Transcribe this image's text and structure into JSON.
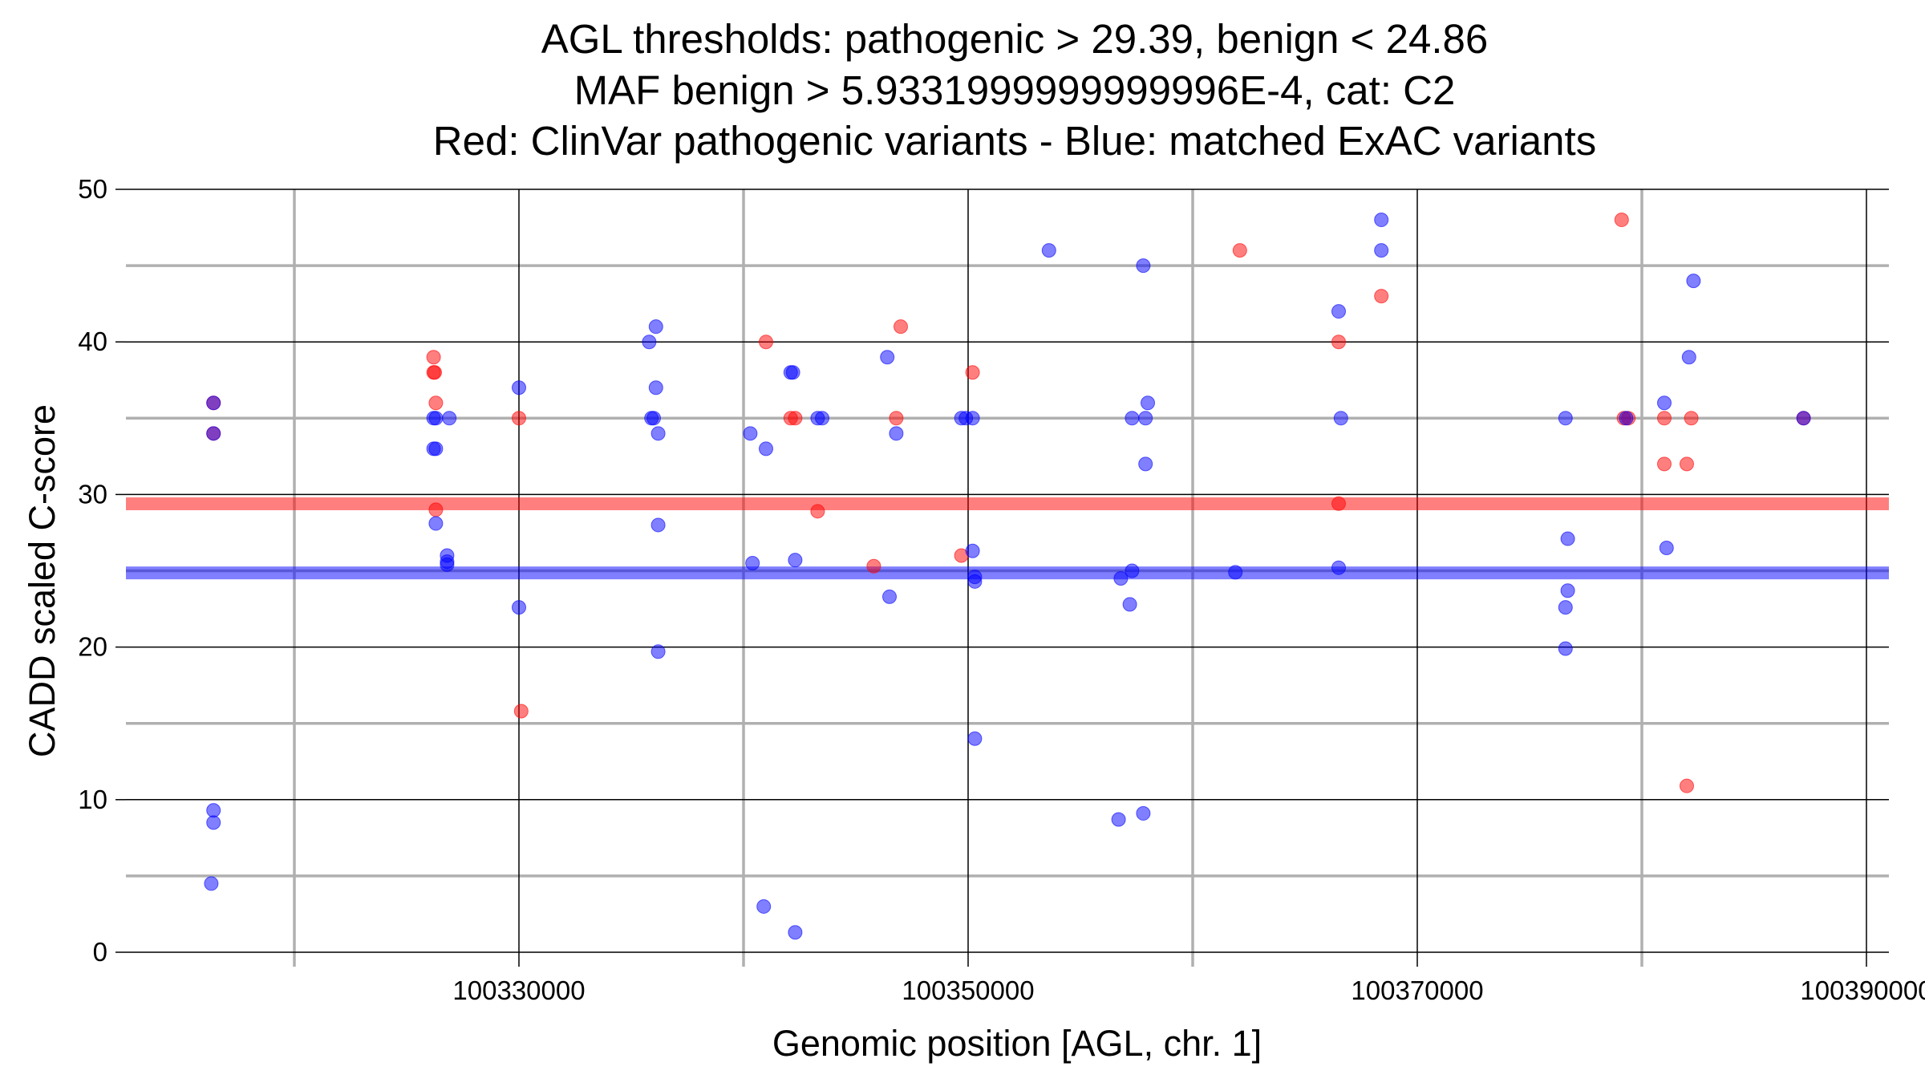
{
  "chart_data": {
    "type": "scatter",
    "title_lines": [
      "AGL thresholds: pathogenic > 29.39, benign < 24.86",
      "MAF benign > 5.9331999999999996E-4, cat: C2",
      "Red: ClinVar pathogenic variants - Blue: matched ExAC variants"
    ],
    "xlabel": "Genomic position [AGL, chr. 1]",
    "ylabel": "CADD scaled C-score",
    "xlim": [
      100312500,
      100391000
    ],
    "ylim": [
      0,
      50
    ],
    "x_ticks": [
      100330000,
      100350000,
      100370000,
      100390000
    ],
    "x_tick_labels": [
      "100330000",
      "100350000",
      "100370000",
      "100390000"
    ],
    "x_minor_grid": [
      100320000,
      100340000,
      100360000,
      100380000
    ],
    "y_ticks": [
      0,
      10,
      20,
      30,
      40,
      50
    ],
    "y_tick_labels": [
      "0",
      "10",
      "20",
      "30",
      "40",
      "50"
    ],
    "y_minor_grid": [
      5,
      15,
      25,
      35,
      45
    ],
    "grid": true,
    "colors": {
      "pathogenic": "#ff0000",
      "benign": "#0000ff",
      "point_opacity": 0.5,
      "band_opacity": 0.5
    },
    "thresholds": {
      "pathogenic": 29.39,
      "benign": 24.86
    },
    "series": [
      {
        "color": "#ff0000",
        "points": [
          [
            100316400,
            36
          ],
          [
            100316400,
            34
          ],
          [
            100326200,
            39
          ],
          [
            100326200,
            38
          ],
          [
            100326250,
            38
          ],
          [
            100326300,
            36
          ],
          [
            100326300,
            29
          ],
          [
            100330000,
            35
          ],
          [
            100330100,
            15.8
          ],
          [
            100341000,
            40
          ],
          [
            100342100,
            35
          ],
          [
            100342300,
            35
          ],
          [
            100343300,
            28.9
          ],
          [
            100345800,
            25.3
          ],
          [
            100346800,
            35
          ],
          [
            100347000,
            41
          ],
          [
            100349700,
            26
          ],
          [
            100350200,
            38
          ],
          [
            100362100,
            46
          ],
          [
            100366500,
            40
          ],
          [
            100366500,
            29.4
          ],
          [
            100368400,
            43
          ],
          [
            100379100,
            48
          ],
          [
            100379200,
            35
          ],
          [
            100379400,
            35
          ],
          [
            100381000,
            35
          ],
          [
            100381000,
            32
          ],
          [
            100382000,
            32
          ],
          [
            100382200,
            35
          ],
          [
            100382000,
            10.9
          ],
          [
            100387200,
            35
          ]
        ]
      },
      {
        "color": "#0000ff",
        "points": [
          [
            100316400,
            36
          ],
          [
            100316400,
            34
          ],
          [
            100316400,
            9.3
          ],
          [
            100316400,
            8.5
          ],
          [
            100316300,
            4.5
          ],
          [
            100326200,
            35
          ],
          [
            100326300,
            35
          ],
          [
            100326200,
            33
          ],
          [
            100326300,
            33
          ],
          [
            100326300,
            28.1
          ],
          [
            100326900,
            35
          ],
          [
            100326800,
            26
          ],
          [
            100326800,
            25.6
          ],
          [
            100326800,
            25.4
          ],
          [
            100330000,
            37
          ],
          [
            100330000,
            22.6
          ],
          [
            100335800,
            40
          ],
          [
            100336100,
            41
          ],
          [
            100335900,
            35
          ],
          [
            100336000,
            35
          ],
          [
            100336100,
            37
          ],
          [
            100336200,
            34
          ],
          [
            100336200,
            28
          ],
          [
            100336200,
            19.7
          ],
          [
            100340300,
            34
          ],
          [
            100340400,
            25.5
          ],
          [
            100341000,
            33
          ],
          [
            100340900,
            3
          ],
          [
            100342100,
            38
          ],
          [
            100342200,
            38
          ],
          [
            100342300,
            25.7
          ],
          [
            100342300,
            1.3
          ],
          [
            100343300,
            35
          ],
          [
            100343500,
            35
          ],
          [
            100346400,
            39
          ],
          [
            100346500,
            23.3
          ],
          [
            100346800,
            34
          ],
          [
            100349700,
            35
          ],
          [
            100349900,
            35
          ],
          [
            100350200,
            35
          ],
          [
            100350200,
            26.3
          ],
          [
            100350300,
            24.6
          ],
          [
            100350300,
            24.3
          ],
          [
            100350300,
            14
          ],
          [
            100353600,
            46
          ],
          [
            100357800,
            45
          ],
          [
            100357300,
            35
          ],
          [
            100357900,
            35
          ],
          [
            100358000,
            36
          ],
          [
            100357900,
            32
          ],
          [
            100356800,
            24.5
          ],
          [
            100357300,
            25
          ],
          [
            100357200,
            22.8
          ],
          [
            100356700,
            8.7
          ],
          [
            100357800,
            9.1
          ],
          [
            100361900,
            24.9
          ],
          [
            100366500,
            42
          ],
          [
            100366600,
            35
          ],
          [
            100366500,
            25.2
          ],
          [
            100368400,
            48
          ],
          [
            100368400,
            46
          ],
          [
            100376600,
            35
          ],
          [
            100376700,
            27.1
          ],
          [
            100376700,
            23.7
          ],
          [
            100376600,
            22.6
          ],
          [
            100376600,
            19.9
          ],
          [
            100379300,
            35
          ],
          [
            100381000,
            36
          ],
          [
            100381100,
            26.5
          ],
          [
            100382100,
            39
          ],
          [
            100382300,
            44
          ],
          [
            100387200,
            35
          ]
        ]
      }
    ]
  }
}
